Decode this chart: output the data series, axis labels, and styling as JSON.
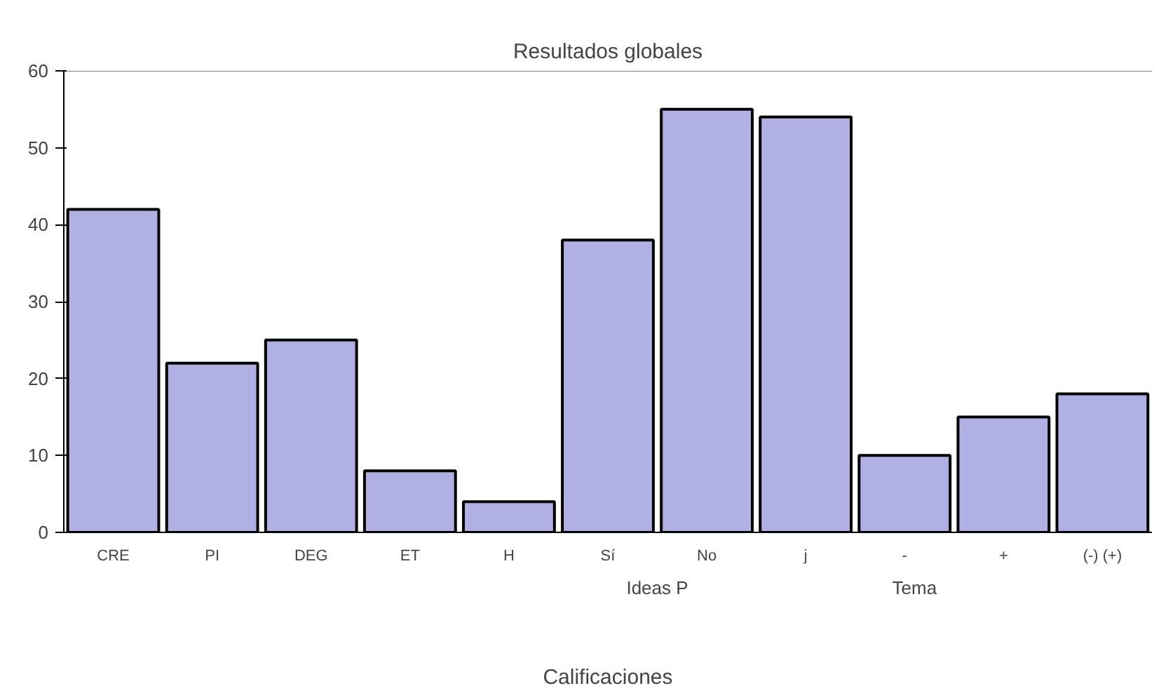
{
  "chart_data": {
    "type": "bar",
    "title": "Resultados globales",
    "xlabel": "Calificaciones",
    "categories": [
      "CRE",
      "PI",
      "DEG",
      "ET",
      "H",
      "Sí",
      "No",
      "j",
      "-",
      "+",
      "(-) (+)"
    ],
    "values": [
      42,
      22,
      25,
      8,
      4,
      38,
      55,
      54,
      10,
      15,
      18
    ],
    "color": "#b0b0e4",
    "ylim": [
      0,
      60
    ],
    "yticks": [
      0,
      10,
      20,
      30,
      40,
      50,
      60
    ],
    "grid": false,
    "annotations": [
      "Ideas P",
      "Tema"
    ]
  }
}
